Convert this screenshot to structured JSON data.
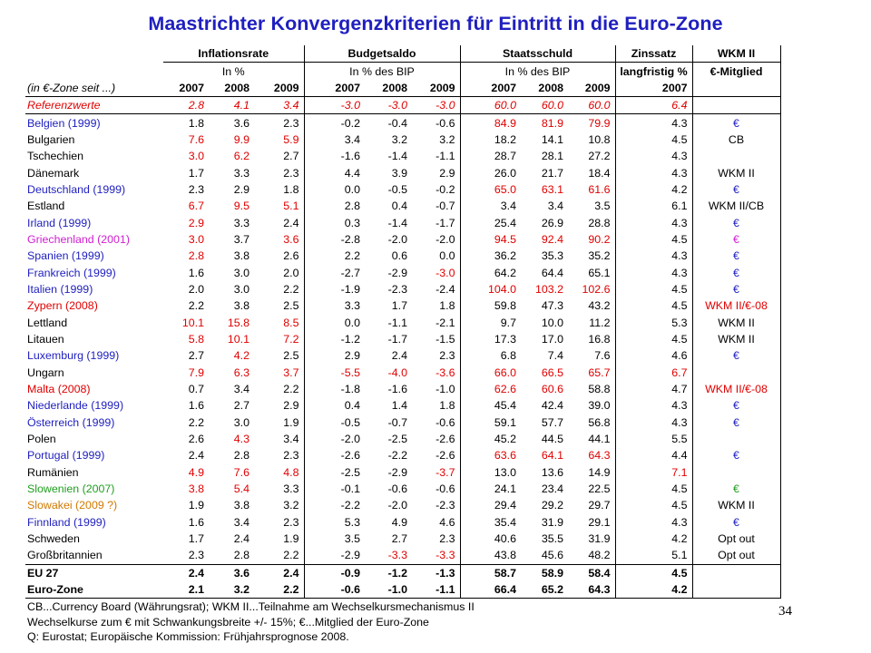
{
  "title": "Maastrichter Konvergenzkriterien für Eintritt in die Euro-Zone",
  "header": {
    "groups": [
      "Inflationsrate",
      "Budgetsaldo",
      "Staatsschuld",
      "Zinssatz",
      "WKM II"
    ],
    "units": [
      "In %",
      "In % des BIP",
      "In % des BIP",
      "langfristig %",
      "€-Mitglied"
    ],
    "row_label": "(in €-Zone seit ...)",
    "years": [
      "2007",
      "2008",
      "2009",
      "2007",
      "2008",
      "2009",
      "2007",
      "2008",
      "2009",
      "2007"
    ]
  },
  "reference": {
    "name": "Referenzwerte",
    "values": [
      "2.8",
      "4.1",
      "3.4",
      "-3.0",
      "-3.0",
      "-3.0",
      "60.0",
      "60.0",
      "60.0",
      "6.4"
    ]
  },
  "rows": [
    {
      "name": "Belgien (1999)",
      "nc": "#1f1fbf",
      "v": [
        "1.8",
        "3.6",
        "2.3",
        "-0.2",
        "-0.4",
        "-0.6",
        "84.9",
        "81.9",
        "79.9",
        "4.3"
      ],
      "vc": [
        0,
        0,
        0,
        0,
        0,
        0,
        1,
        1,
        1,
        0
      ],
      "m": "€",
      "mc": "#1f1fbf"
    },
    {
      "name": "Bulgarien",
      "nc": "#000000",
      "v": [
        "7.6",
        "9.9",
        "5.9",
        "3.4",
        "3.2",
        "3.2",
        "18.2",
        "14.1",
        "10.8",
        "4.5"
      ],
      "vc": [
        1,
        1,
        1,
        0,
        0,
        0,
        0,
        0,
        0,
        0
      ],
      "m": "CB",
      "mc": "#000000"
    },
    {
      "name": "Tschechien",
      "nc": "#000000",
      "v": [
        "3.0",
        "6.2",
        "2.7",
        "-1.6",
        "-1.4",
        "-1.1",
        "28.7",
        "28.1",
        "27.2",
        "4.3"
      ],
      "vc": [
        1,
        1,
        0,
        0,
        0,
        0,
        0,
        0,
        0,
        0
      ],
      "m": "",
      "mc": "#000000"
    },
    {
      "name": "Dänemark",
      "nc": "#000000",
      "v": [
        "1.7",
        "3.3",
        "2.3",
        "4.4",
        "3.9",
        "2.9",
        "26.0",
        "21.7",
        "18.4",
        "4.3"
      ],
      "vc": [
        0,
        0,
        0,
        0,
        0,
        0,
        0,
        0,
        0,
        0
      ],
      "m": "WKM II",
      "mc": "#000000"
    },
    {
      "name": "Deutschland (1999)",
      "nc": "#1f1fbf",
      "v": [
        "2.3",
        "2.9",
        "1.8",
        "0.0",
        "-0.5",
        "-0.2",
        "65.0",
        "63.1",
        "61.6",
        "4.2"
      ],
      "vc": [
        0,
        0,
        0,
        0,
        0,
        0,
        1,
        1,
        1,
        0
      ],
      "m": "€",
      "mc": "#1f1fbf"
    },
    {
      "name": "Estland",
      "nc": "#000000",
      "v": [
        "6.7",
        "9.5",
        "5.1",
        "2.8",
        "0.4",
        "-0.7",
        "3.4",
        "3.4",
        "3.5",
        "6.1"
      ],
      "vc": [
        1,
        1,
        1,
        0,
        0,
        0,
        0,
        0,
        0,
        0
      ],
      "m": "WKM II/CB",
      "mc": "#000000"
    },
    {
      "name": "Irland (1999)",
      "nc": "#1f1fbf",
      "v": [
        "2.9",
        "3.3",
        "2.4",
        "0.3",
        "-1.4",
        "-1.7",
        "25.4",
        "26.9",
        "28.8",
        "4.3"
      ],
      "vc": [
        1,
        0,
        0,
        0,
        0,
        0,
        0,
        0,
        0,
        0
      ],
      "m": "€",
      "mc": "#1f1fbf"
    },
    {
      "name": "Griechenland (2001)",
      "nc": "#d01fd0",
      "v": [
        "3.0",
        "3.7",
        "3.6",
        "-2.8",
        "-2.0",
        "-2.0",
        "94.5",
        "92.4",
        "90.2",
        "4.5"
      ],
      "vc": [
        1,
        0,
        1,
        0,
        0,
        0,
        1,
        1,
        1,
        0
      ],
      "m": "€",
      "mc": "#d01fd0"
    },
    {
      "name": "Spanien (1999)",
      "nc": "#1f1fbf",
      "v": [
        "2.8",
        "3.8",
        "2.6",
        "2.2",
        "0.6",
        "0.0",
        "36.2",
        "35.3",
        "35.2",
        "4.3"
      ],
      "vc": [
        1,
        0,
        0,
        0,
        0,
        0,
        0,
        0,
        0,
        0
      ],
      "m": "€",
      "mc": "#1f1fbf"
    },
    {
      "name": "Frankreich (1999)",
      "nc": "#1f1fbf",
      "v": [
        "1.6",
        "3.0",
        "2.0",
        "-2.7",
        "-2.9",
        "-3.0",
        "64.2",
        "64.4",
        "65.1",
        "4.3"
      ],
      "vc": [
        0,
        0,
        0,
        0,
        0,
        1,
        0,
        0,
        0,
        0
      ],
      "m": "€",
      "mc": "#1f1fbf"
    },
    {
      "name": "Italien (1999)",
      "nc": "#1f1fbf",
      "v": [
        "2.0",
        "3.0",
        "2.2",
        "-1.9",
        "-2.3",
        "-2.4",
        "104.0",
        "103.2",
        "102.6",
        "4.5"
      ],
      "vc": [
        0,
        0,
        0,
        0,
        0,
        0,
        1,
        1,
        1,
        0
      ],
      "m": "€",
      "mc": "#1f1fbf"
    },
    {
      "name": "Zypern (2008)",
      "nc": "#e00000",
      "v": [
        "2.2",
        "3.8",
        "2.5",
        "3.3",
        "1.7",
        "1.8",
        "59.8",
        "47.3",
        "43.2",
        "4.5"
      ],
      "vc": [
        0,
        0,
        0,
        0,
        0,
        0,
        0,
        0,
        0,
        0
      ],
      "m": "WKM II/€-08",
      "mc": "#e00000"
    },
    {
      "name": "Lettland",
      "nc": "#000000",
      "v": [
        "10.1",
        "15.8",
        "8.5",
        "0.0",
        "-1.1",
        "-2.1",
        "9.7",
        "10.0",
        "11.2",
        "5.3"
      ],
      "vc": [
        1,
        1,
        1,
        0,
        0,
        0,
        0,
        0,
        0,
        0
      ],
      "m": "WKM II",
      "mc": "#000000"
    },
    {
      "name": "Litauen",
      "nc": "#000000",
      "v": [
        "5.8",
        "10.1",
        "7.2",
        "-1.2",
        "-1.7",
        "-1.5",
        "17.3",
        "17.0",
        "16.8",
        "4.5"
      ],
      "vc": [
        1,
        1,
        1,
        0,
        0,
        0,
        0,
        0,
        0,
        0
      ],
      "m": "WKM II",
      "mc": "#000000"
    },
    {
      "name": "Luxemburg (1999)",
      "nc": "#1f1fbf",
      "v": [
        "2.7",
        "4.2",
        "2.5",
        "2.9",
        "2.4",
        "2.3",
        "6.8",
        "7.4",
        "7.6",
        "4.6"
      ],
      "vc": [
        0,
        1,
        0,
        0,
        0,
        0,
        0,
        0,
        0,
        0
      ],
      "m": "€",
      "mc": "#1f1fbf"
    },
    {
      "name": "Ungarn",
      "nc": "#000000",
      "v": [
        "7.9",
        "6.3",
        "3.7",
        "-5.5",
        "-4.0",
        "-3.6",
        "66.0",
        "66.5",
        "65.7",
        "6.7"
      ],
      "vc": [
        1,
        1,
        1,
        1,
        1,
        1,
        1,
        1,
        1,
        1
      ],
      "m": "",
      "mc": "#000000"
    },
    {
      "name": "Malta (2008)",
      "nc": "#e00000",
      "v": [
        "0.7",
        "3.4",
        "2.2",
        "-1.8",
        "-1.6",
        "-1.0",
        "62.6",
        "60.6",
        "58.8",
        "4.7"
      ],
      "vc": [
        0,
        0,
        0,
        0,
        0,
        0,
        1,
        1,
        0,
        0
      ],
      "m": "WKM II/€-08",
      "mc": "#e00000"
    },
    {
      "name": "Niederlande (1999)",
      "nc": "#1f1fbf",
      "v": [
        "1.6",
        "2.7",
        "2.9",
        "0.4",
        "1.4",
        "1.8",
        "45.4",
        "42.4",
        "39.0",
        "4.3"
      ],
      "vc": [
        0,
        0,
        0,
        0,
        0,
        0,
        0,
        0,
        0,
        0
      ],
      "m": "€",
      "mc": "#1f1fbf"
    },
    {
      "name": "Österreich (1999)",
      "nc": "#1f1fbf",
      "v": [
        "2.2",
        "3.0",
        "1.9",
        "-0.5",
        "-0.7",
        "-0.6",
        "59.1",
        "57.7",
        "56.8",
        "4.3"
      ],
      "vc": [
        0,
        0,
        0,
        0,
        0,
        0,
        0,
        0,
        0,
        0
      ],
      "m": "€",
      "mc": "#1f1fbf"
    },
    {
      "name": "Polen",
      "nc": "#000000",
      "v": [
        "2.6",
        "4.3",
        "3.4",
        "-2.0",
        "-2.5",
        "-2.6",
        "45.2",
        "44.5",
        "44.1",
        "5.5"
      ],
      "vc": [
        0,
        1,
        0,
        0,
        0,
        0,
        0,
        0,
        0,
        0
      ],
      "m": "",
      "mc": "#000000"
    },
    {
      "name": "Portugal (1999)",
      "nc": "#1f1fbf",
      "v": [
        "2.4",
        "2.8",
        "2.3",
        "-2.6",
        "-2.2",
        "-2.6",
        "63.6",
        "64.1",
        "64.3",
        "4.4"
      ],
      "vc": [
        0,
        0,
        0,
        0,
        0,
        0,
        1,
        1,
        1,
        0
      ],
      "m": "€",
      "mc": "#1f1fbf"
    },
    {
      "name": "Rumänien",
      "nc": "#000000",
      "v": [
        "4.9",
        "7.6",
        "4.8",
        "-2.5",
        "-2.9",
        "-3.7",
        "13.0",
        "13.6",
        "14.9",
        "7.1"
      ],
      "vc": [
        1,
        1,
        1,
        0,
        0,
        1,
        0,
        0,
        0,
        1
      ],
      "m": "",
      "mc": "#000000"
    },
    {
      "name": "Slowenien (2007)",
      "nc": "#1f9f1f",
      "v": [
        "3.8",
        "5.4",
        "3.3",
        "-0.1",
        "-0.6",
        "-0.6",
        "24.1",
        "23.4",
        "22.5",
        "4.5"
      ],
      "vc": [
        1,
        1,
        0,
        0,
        0,
        0,
        0,
        0,
        0,
        0
      ],
      "m": "€",
      "mc": "#1f9f1f"
    },
    {
      "name": "Slowakei (2009 ?)",
      "nc": "#d07a00",
      "v": [
        "1.9",
        "3.8",
        "3.2",
        "-2.2",
        "-2.0",
        "-2.3",
        "29.4",
        "29.2",
        "29.7",
        "4.5"
      ],
      "vc": [
        0,
        0,
        0,
        0,
        0,
        0,
        0,
        0,
        0,
        0
      ],
      "m": "WKM II",
      "mc": "#000000"
    },
    {
      "name": "Finnland (1999)",
      "nc": "#1f1fbf",
      "v": [
        "1.6",
        "3.4",
        "2.3",
        "5.3",
        "4.9",
        "4.6",
        "35.4",
        "31.9",
        "29.1",
        "4.3"
      ],
      "vc": [
        0,
        0,
        0,
        0,
        0,
        0,
        0,
        0,
        0,
        0
      ],
      "m": "€",
      "mc": "#1f1fbf"
    },
    {
      "name": "Schweden",
      "nc": "#000000",
      "v": [
        "1.7",
        "2.4",
        "1.9",
        "3.5",
        "2.7",
        "2.3",
        "40.6",
        "35.5",
        "31.9",
        "4.2"
      ],
      "vc": [
        0,
        0,
        0,
        0,
        0,
        0,
        0,
        0,
        0,
        0
      ],
      "m": "Opt out",
      "mc": "#000000"
    },
    {
      "name": "Großbritannien",
      "nc": "#000000",
      "v": [
        "2.3",
        "2.8",
        "2.2",
        "-2.9",
        "-3.3",
        "-3.3",
        "43.8",
        "45.6",
        "48.2",
        "5.1"
      ],
      "vc": [
        0,
        0,
        0,
        0,
        1,
        1,
        0,
        0,
        0,
        0
      ],
      "m": "Opt out",
      "mc": "#000000"
    }
  ],
  "summary": [
    {
      "name": "EU 27",
      "values": [
        "2.4",
        "3.6",
        "2.4",
        "-0.9",
        "-1.2",
        "-1.3",
        "58.7",
        "58.9",
        "58.4",
        "4.5"
      ]
    },
    {
      "name": "Euro-Zone",
      "values": [
        "2.1",
        "3.2",
        "2.2",
        "-0.6",
        "-1.0",
        "-1.1",
        "66.4",
        "65.2",
        "64.3",
        "4.2"
      ]
    }
  ],
  "notes": [
    "CB...Currency Board (Währungsrat); WKM II...Teilnahme am Wechselkursmechanismus II",
    "Wechselkurse zum € mit Schwankungsbreite +/- 15%; €...Mitglied der Euro-Zone",
    "Q: Eurostat; Europäische Kommission: Frühjahrsprognose 2008."
  ],
  "page_number": "34",
  "colors": {
    "title": "#1f1fbf",
    "red": "#e00000",
    "blue": "#1f1fbf",
    "magenta": "#d01fd0",
    "green": "#1f9f1f",
    "orange": "#d07a00"
  }
}
